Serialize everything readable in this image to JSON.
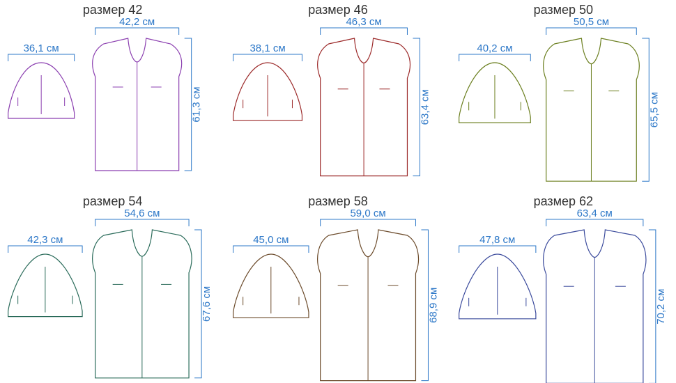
{
  "label_font_size": 18,
  "label_color": "#333333",
  "dimension_color": "#2d78c8",
  "dimension_font_size": 15,
  "background_color": "#ffffff",
  "grid": {
    "cols": 3,
    "rows": 2
  },
  "sizes": [
    {
      "title": "размер 42",
      "body_width": "42,2 см",
      "body_height": "61,3 см",
      "sleeve_width": "36,1 см",
      "outline_color": "#8b3fb0",
      "sleeve_outline_color": "#8b3fb0",
      "body_scale": 1.0
    },
    {
      "title": "размер 46",
      "body_width": "46,3 см",
      "body_height": "63,4 см",
      "sleeve_width": "38,1 см",
      "outline_color": "#9c2a2a",
      "sleeve_outline_color": "#9c2a2a",
      "body_scale": 1.04
    },
    {
      "title": "размер 50",
      "body_width": "50,5 см",
      "body_height": "65,5 см",
      "sleeve_width": "40,2 см",
      "outline_color": "#6b7f1f",
      "sleeve_outline_color": "#6b7f1f",
      "body_scale": 1.08
    },
    {
      "title": "размер 54",
      "body_width": "54,6 см",
      "body_height": "67,6 см",
      "sleeve_width": "42,3 см",
      "outline_color": "#2a6b5a",
      "sleeve_outline_color": "#2a6b5a",
      "body_scale": 1.12
    },
    {
      "title": "размер 58",
      "body_width": "59,0 см",
      "body_height": "68,9 см",
      "sleeve_width": "45,0 см",
      "outline_color": "#6b4a2a",
      "sleeve_outline_color": "#6b4a2a",
      "body_scale": 1.14
    },
    {
      "title": "размер 62",
      "body_width": "63,4 см",
      "body_height": "70,2 см",
      "sleeve_width": "47,8 см",
      "outline_color": "#3a4a9c",
      "sleeve_outline_color": "#3a4a9c",
      "body_scale": 1.16
    }
  ]
}
